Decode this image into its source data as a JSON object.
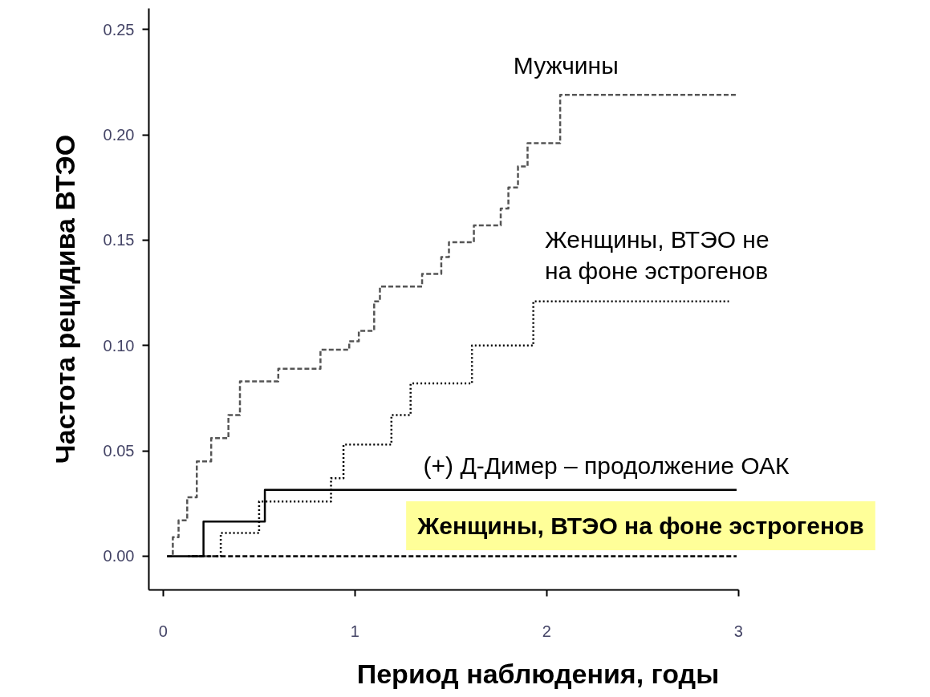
{
  "chart_data": {
    "type": "step",
    "xlabel": "Период наблюдения, годы",
    "ylabel": "Частота рецидива ВТЭО",
    "xlim": [
      -0.075,
      3.0
    ],
    "xticks": [
      0,
      1,
      2,
      3
    ],
    "ylim": [
      -0.016,
      0.26
    ],
    "yticks": [
      {
        "value": 0,
        "label": "0.00"
      },
      {
        "value": 0.05,
        "label": "0.05"
      },
      {
        "value": 0.1,
        "label": "0.10"
      },
      {
        "value": 0.15,
        "label": "0.15"
      },
      {
        "value": 0.2,
        "label": "0.20"
      },
      {
        "value": 0.25,
        "label": "0.25"
      }
    ],
    "grid": false,
    "series": [
      {
        "name": "Мужчины",
        "color": "#555555",
        "line_style": "dashed",
        "x": [
          0.02,
          0.05,
          0.08,
          0.125,
          0.175,
          0.25,
          0.34,
          0.4,
          0.6,
          0.82,
          0.97,
          1.02,
          1.1,
          1.13,
          1.35,
          1.45,
          1.49,
          1.62,
          1.76,
          1.8,
          1.85,
          1.9,
          2.07,
          2.99
        ],
        "values": [
          0,
          0.009,
          0.017,
          0.028,
          0.045,
          0.056,
          0.067,
          0.083,
          0.089,
          0.098,
          0.102,
          0.107,
          0.121,
          0.128,
          0.134,
          0.142,
          0.149,
          0.157,
          0.165,
          0.175,
          0.185,
          0.196,
          0.219,
          0.219
        ]
      },
      {
        "name": "Женщины, ВТЭО не\nна фоне эстрогенов",
        "color": "#000000",
        "line_style": "dotted",
        "x": [
          0.13,
          0.3,
          0.5,
          0.875,
          0.94,
          1.19,
          1.29,
          1.61,
          1.93,
          2.95
        ],
        "values": [
          0,
          0.011,
          0.026,
          0.037,
          0.053,
          0.067,
          0.082,
          0.1,
          0.121,
          0.121
        ]
      },
      {
        "name": "(+) Д-Димер – продолжение ОАК",
        "color": "#000000",
        "line_style": "solid",
        "x": [
          0.02,
          0.21,
          0.53,
          2.99
        ],
        "values": [
          0,
          0.0165,
          0.0315,
          0.0315
        ]
      },
      {
        "name": "Женщины, ВТЭО на фоне эстрогенов",
        "color": "#000000",
        "line_style": "dashed",
        "x": [
          0.15,
          2.99
        ],
        "values": [
          0,
          0
        ]
      }
    ]
  }
}
